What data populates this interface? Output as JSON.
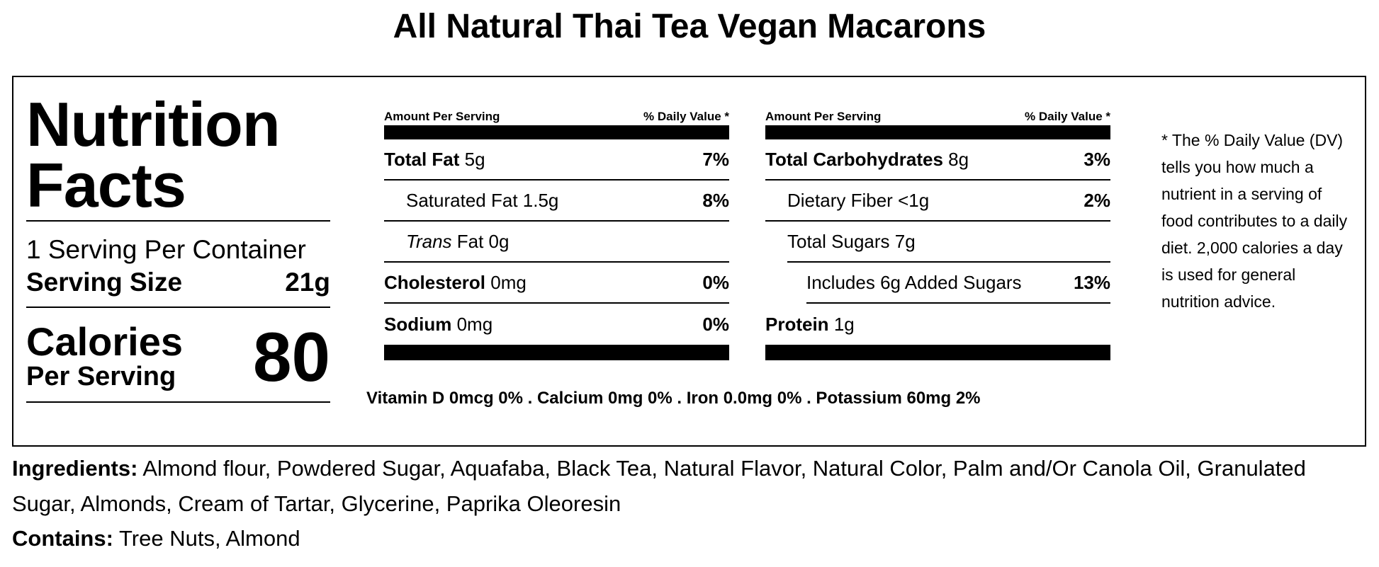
{
  "title": "All Natural Thai Tea Vegan Macarons",
  "label": {
    "heading_line1": "Nutrition",
    "heading_line2": "Facts",
    "servings_per_container": "1 Serving Per Container",
    "serving_size_label": "Serving Size",
    "serving_size_value": "21g",
    "calories_label": "Calories",
    "calories_sub": "Per Serving",
    "calories_value": "80"
  },
  "columns": [
    {
      "header_left": "Amount Per Serving",
      "header_right": "% Daily Value *",
      "rows": [
        {
          "name": "Total Fat",
          "amount": "5g",
          "dv": "7%"
        },
        {
          "name": "Saturated Fat",
          "amount": "1.5g",
          "dv": "8%"
        },
        {
          "name": "Trans",
          "amount": "Fat 0g",
          "dv": ""
        },
        {
          "name": "Cholesterol",
          "amount": "0mg",
          "dv": "0%"
        },
        {
          "name": "Sodium",
          "amount": "0mg",
          "dv": "0%"
        }
      ]
    },
    {
      "header_left": "Amount Per Serving",
      "header_right": "% Daily Value *",
      "rows": [
        {
          "name": "Total Carbohydrates",
          "amount": "8g",
          "dv": "3%"
        },
        {
          "name": "Dietary Fiber",
          "amount": "<1g",
          "dv": "2%"
        },
        {
          "name": "Total Sugars",
          "amount": "7g",
          "dv": ""
        },
        {
          "name": "Includes 6g Added Sugars",
          "amount": "",
          "dv": "13%"
        },
        {
          "name": "Protein",
          "amount": "1g",
          "dv": ""
        }
      ]
    }
  ],
  "vitamins": "Vitamin D 0mcg 0% . Calcium 0mg 0% . Iron 0.0mg 0% . Potassium 60mg 2%",
  "footnote": "* The % Daily Value (DV) tells you how much a nutrient in a serving of food contributes to a daily diet. 2,000 calories a day is used for general nutrition advice.",
  "ingredients_label": "Ingredients:",
  "ingredients_text": "Almond flour, Powdered Sugar, Aquafaba, Black Tea, Natural Flavor, Natural Color, Palm and/Or Canola Oil, Granulated Sugar, Almonds, Cream of Tartar, Glycerine, Paprika Oleoresin",
  "contains_label": "Contains:",
  "contains_text": "Tree Nuts, Almond"
}
